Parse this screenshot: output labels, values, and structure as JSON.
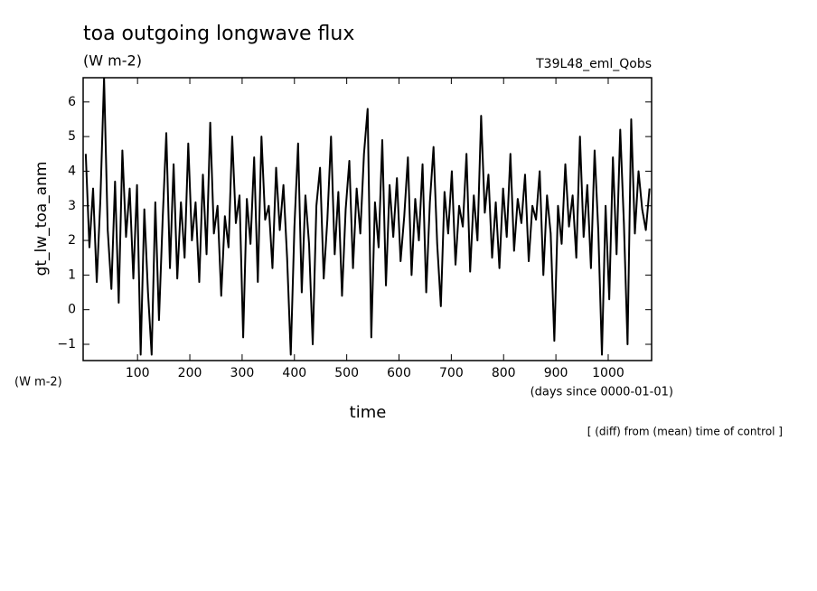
{
  "chart_data": {
    "type": "line",
    "title": "toa outgoing longwave flux",
    "subtitle": "(W m-2)",
    "annotation": "T39L48_eml_Qobs",
    "y_label": "gt_lw_toa_anm",
    "y_unit": "(W m-2)",
    "x_unit": "(days since 0000-01-01)",
    "x_label": "time",
    "footnote": "[ (diff) from (mean) time of control ]",
    "xlim": [
      -4,
      1083
    ],
    "ylim": [
      -1.47,
      6.7
    ],
    "xticks": [
      100,
      200,
      300,
      400,
      500,
      600,
      700,
      800,
      900,
      1000
    ],
    "yticks": [
      {
        "value": -1,
        "label": "−1"
      },
      0,
      1,
      2,
      3,
      4,
      5,
      6
    ],
    "series": [
      {
        "color": "#000000",
        "x": [
          1,
          8,
          15,
          22,
          29,
          36,
          43,
          50,
          57,
          64,
          71,
          78,
          85,
          92,
          99,
          106,
          113,
          120,
          127,
          134,
          141,
          148,
          155,
          162,
          169,
          176,
          183,
          190,
          197,
          204,
          211,
          218,
          225,
          232,
          239,
          246,
          253,
          260,
          267,
          274,
          281,
          288,
          295,
          302,
          309,
          316,
          323,
          330,
          337,
          344,
          351,
          358,
          365,
          372,
          379,
          386,
          393,
          400,
          407,
          414,
          421,
          428,
          435,
          442,
          449,
          456,
          463,
          470,
          477,
          484,
          491,
          498,
          505,
          512,
          519,
          526,
          533,
          540,
          547,
          554,
          561,
          568,
          575,
          582,
          589,
          596,
          603,
          610,
          617,
          624,
          631,
          638,
          645,
          652,
          659,
          666,
          673,
          680,
          687,
          694,
          701,
          708,
          715,
          722,
          729,
          736,
          743,
          750,
          757,
          764,
          771,
          778,
          785,
          792,
          799,
          806,
          813,
          820,
          827,
          834,
          841,
          848,
          855,
          862,
          869,
          876,
          883,
          890,
          897,
          904,
          911,
          918,
          925,
          932,
          939,
          946,
          953,
          960,
          967,
          974,
          981,
          988,
          995,
          1002,
          1009,
          1016,
          1023,
          1030,
          1037,
          1044,
          1051,
          1058,
          1065,
          1072,
          1079
        ],
        "values": [
          4.5,
          1.8,
          3.5,
          0.8,
          3.2,
          6.7,
          2.3,
          0.6,
          3.7,
          0.2,
          4.6,
          2.1,
          3.5,
          0.9,
          3.6,
          -1.3,
          2.9,
          0.5,
          -1.3,
          3.1,
          -0.3,
          2.6,
          5.1,
          1.2,
          4.2,
          0.9,
          3.1,
          1.5,
          4.8,
          2.0,
          3.1,
          0.8,
          3.9,
          1.6,
          5.4,
          2.2,
          3.0,
          0.4,
          2.7,
          1.8,
          5.0,
          2.5,
          3.3,
          -0.8,
          3.2,
          1.9,
          4.4,
          0.8,
          5.0,
          2.6,
          3.0,
          1.2,
          4.1,
          2.3,
          3.6,
          1.5,
          -1.3,
          2.4,
          4.8,
          0.5,
          3.3,
          1.9,
          -1.0,
          3.0,
          4.1,
          0.9,
          2.6,
          5.0,
          1.6,
          3.4,
          0.4,
          2.9,
          4.3,
          1.2,
          3.5,
          2.2,
          4.5,
          5.8,
          -0.8,
          3.1,
          1.8,
          4.9,
          0.7,
          3.6,
          2.1,
          3.8,
          1.4,
          2.7,
          4.4,
          1.0,
          3.2,
          2.0,
          4.2,
          0.5,
          3.1,
          4.7,
          1.9,
          0.1,
          3.4,
          2.2,
          4.0,
          1.3,
          3.0,
          2.4,
          4.5,
          1.1,
          3.3,
          2.0,
          5.6,
          2.8,
          3.9,
          1.5,
          3.1,
          1.2,
          3.5,
          2.1,
          4.5,
          1.7,
          3.2,
          2.5,
          3.9,
          1.4,
          3.0,
          2.6,
          4.0,
          1.0,
          3.3,
          2.2,
          -0.9,
          3.0,
          1.9,
          4.2,
          2.4,
          3.3,
          1.5,
          5.0,
          2.1,
          3.6,
          1.2,
          4.6,
          2.3,
          -1.3,
          3.0,
          0.3,
          4.4,
          1.6,
          5.2,
          2.5,
          -1.0,
          5.5,
          2.2,
          4.0,
          2.9,
          2.3,
          3.5
        ]
      }
    ]
  }
}
